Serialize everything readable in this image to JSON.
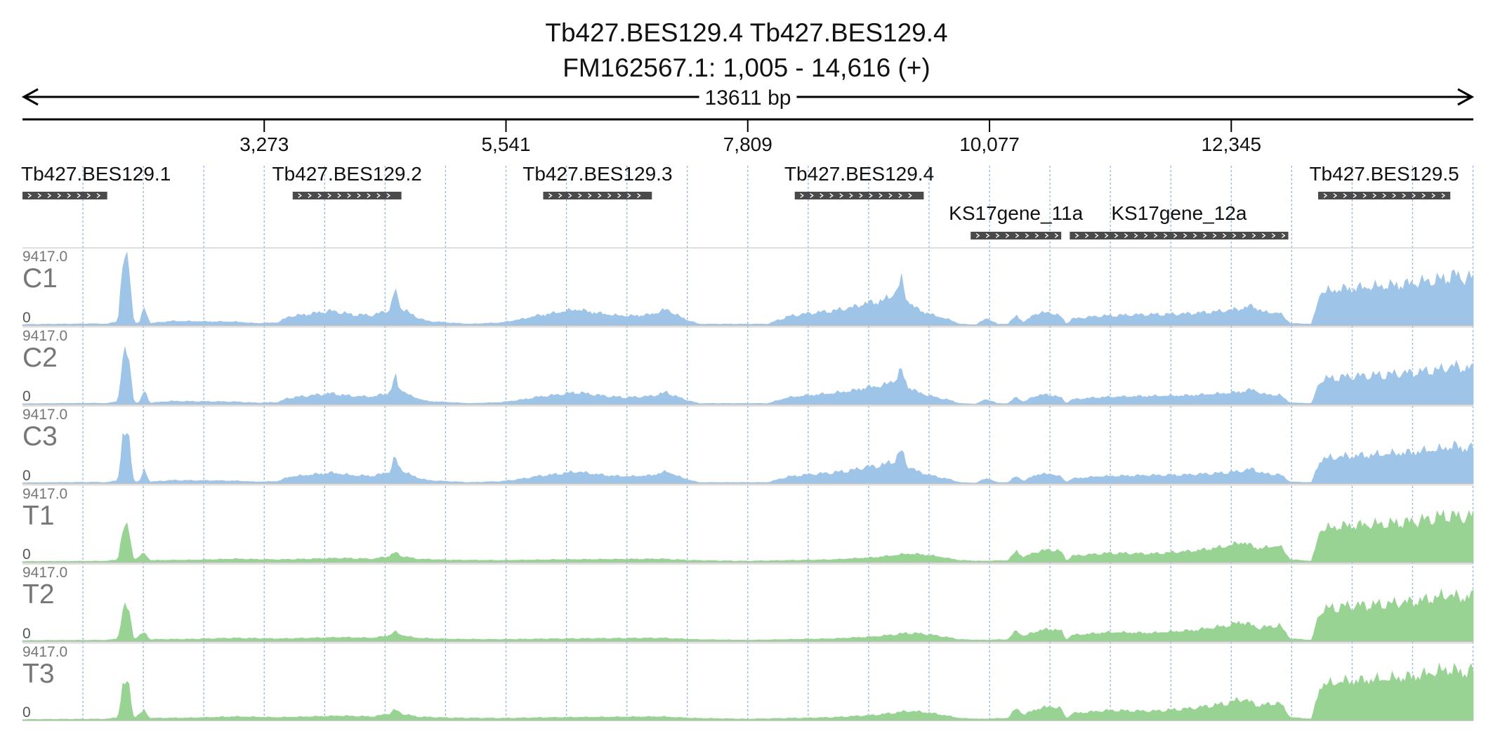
{
  "title": {
    "line1": "Tb427.BES129.4  Tb427.BES129.4",
    "line2": "FM162567.1: 1,005 - 14,616 (+)"
  },
  "chart_data": {
    "type": "area",
    "region": {
      "start": 1005,
      "end": 14616,
      "strand": "+",
      "length_label": "13611 bp"
    },
    "ticks": [
      {
        "pos": 3273,
        "label": "3,273"
      },
      {
        "pos": 5541,
        "label": "5,541"
      },
      {
        "pos": 7809,
        "label": "7,809"
      },
      {
        "pos": 10077,
        "label": "10,077"
      },
      {
        "pos": 12345,
        "label": "12,345"
      }
    ],
    "genes": [
      {
        "name": "Tb427.BES129.1",
        "start": 1005,
        "end": 1800,
        "row": 0
      },
      {
        "name": "Tb427.BES129.2",
        "start": 3540,
        "end": 4560,
        "row": 0
      },
      {
        "name": "Tb427.BES129.3",
        "start": 5890,
        "end": 6910,
        "row": 0
      },
      {
        "name": "Tb427.BES129.4",
        "start": 8250,
        "end": 9460,
        "row": 0
      },
      {
        "name": "KS17gene_11a",
        "start": 9900,
        "end": 10750,
        "row": 1
      },
      {
        "name": "KS17gene_12a",
        "start": 10830,
        "end": 12880,
        "row": 1
      },
      {
        "name": "Tb427.BES129.5",
        "start": 13160,
        "end": 14400,
        "row": 0
      }
    ],
    "track_max": "9417.0",
    "track_min": "0",
    "ymax": 9417,
    "colors": {
      "control": "#9ec4e8",
      "treated": "#98d394"
    },
    "tracks": [
      {
        "name": "C1",
        "group": "control",
        "scale": 1.0
      },
      {
        "name": "C2",
        "group": "control",
        "scale": 0.76
      },
      {
        "name": "C3",
        "group": "control",
        "scale": 0.74
      },
      {
        "name": "T1",
        "group": "treated",
        "scale": 1.0
      },
      {
        "name": "T2",
        "group": "treated",
        "scale": 0.97
      },
      {
        "name": "T3",
        "group": "treated",
        "scale": 1.07
      }
    ],
    "control_profile": [
      [
        1005,
        150
      ],
      [
        1700,
        250
      ],
      [
        1800,
        200
      ],
      [
        1900,
        600
      ],
      [
        1950,
        8900
      ],
      [
        2000,
        8900
      ],
      [
        2050,
        400
      ],
      [
        2100,
        300
      ],
      [
        2150,
        2600
      ],
      [
        2200,
        300
      ],
      [
        2400,
        600
      ],
      [
        3000,
        500
      ],
      [
        3200,
        300
      ],
      [
        3400,
        400
      ],
      [
        3500,
        1200
      ],
      [
        3700,
        1600
      ],
      [
        3900,
        2000
      ],
      [
        4100,
        1500
      ],
      [
        4300,
        1400
      ],
      [
        4450,
        2200
      ],
      [
        4480,
        3400
      ],
      [
        4500,
        5600
      ],
      [
        4520,
        3500
      ],
      [
        4560,
        2600
      ],
      [
        4650,
        1500
      ],
      [
        4800,
        600
      ],
      [
        5200,
        200
      ],
      [
        5500,
        400
      ],
      [
        5700,
        900
      ],
      [
        5850,
        1400
      ],
      [
        6000,
        1700
      ],
      [
        6200,
        2200
      ],
      [
        6400,
        1700
      ],
      [
        6550,
        1400
      ],
      [
        6700,
        1300
      ],
      [
        6900,
        1500
      ],
      [
        7050,
        2200
      ],
      [
        7200,
        1000
      ],
      [
        7350,
        200
      ],
      [
        7800,
        200
      ],
      [
        8000,
        200
      ],
      [
        8100,
        800
      ],
      [
        8200,
        1300
      ],
      [
        8400,
        1700
      ],
      [
        8600,
        2000
      ],
      [
        8800,
        2500
      ],
      [
        8900,
        3000
      ],
      [
        9000,
        3200
      ],
      [
        9100,
        3500
      ],
      [
        9200,
        4600
      ],
      [
        9250,
        6200
      ],
      [
        9300,
        3500
      ],
      [
        9400,
        2200
      ],
      [
        9550,
        1400
      ],
      [
        9700,
        800
      ],
      [
        9800,
        200
      ],
      [
        9950,
        100
      ],
      [
        10050,
        1000
      ],
      [
        10150,
        200
      ],
      [
        10250,
        200
      ],
      [
        10330,
        1400
      ],
      [
        10400,
        400
      ],
      [
        10500,
        1600
      ],
      [
        10650,
        1800
      ],
      [
        10750,
        1200
      ],
      [
        10800,
        200
      ],
      [
        10850,
        900
      ],
      [
        11100,
        1300
      ],
      [
        11500,
        1500
      ],
      [
        11900,
        1600
      ],
      [
        12200,
        1900
      ],
      [
        12400,
        2200
      ],
      [
        12550,
        2700
      ],
      [
        12650,
        1800
      ],
      [
        12800,
        1700
      ],
      [
        12900,
        300
      ],
      [
        13100,
        200
      ],
      [
        13180,
        4500
      ],
      [
        13400,
        5000
      ],
      [
        13700,
        5300
      ],
      [
        14000,
        5700
      ],
      [
        14300,
        6300
      ],
      [
        14450,
        7000
      ],
      [
        14500,
        6500
      ],
      [
        14616,
        6600
      ]
    ],
    "treated_profile": [
      [
        1005,
        150
      ],
      [
        1800,
        200
      ],
      [
        1900,
        400
      ],
      [
        1950,
        4700
      ],
      [
        2000,
        4700
      ],
      [
        2050,
        300
      ],
      [
        2150,
        1300
      ],
      [
        2200,
        300
      ],
      [
        2600,
        350
      ],
      [
        3000,
        500
      ],
      [
        3400,
        400
      ],
      [
        3700,
        500
      ],
      [
        4000,
        600
      ],
      [
        4300,
        500
      ],
      [
        4450,
        900
      ],
      [
        4500,
        1400
      ],
      [
        4560,
        900
      ],
      [
        4700,
        500
      ],
      [
        5000,
        350
      ],
      [
        5500,
        300
      ],
      [
        6000,
        400
      ],
      [
        6500,
        450
      ],
      [
        7000,
        500
      ],
      [
        7300,
        300
      ],
      [
        7800,
        200
      ],
      [
        8200,
        300
      ],
      [
        8600,
        400
      ],
      [
        9000,
        700
      ],
      [
        9200,
        1000
      ],
      [
        9300,
        1200
      ],
      [
        9450,
        1100
      ],
      [
        9600,
        800
      ],
      [
        9800,
        300
      ],
      [
        10000,
        200
      ],
      [
        10250,
        300
      ],
      [
        10330,
        1600
      ],
      [
        10400,
        700
      ],
      [
        10500,
        1400
      ],
      [
        10650,
        1800
      ],
      [
        10750,
        1500
      ],
      [
        10800,
        200
      ],
      [
        10850,
        900
      ],
      [
        11200,
        1300
      ],
      [
        11600,
        1200
      ],
      [
        12000,
        1600
      ],
      [
        12300,
        2200
      ],
      [
        12450,
        2800
      ],
      [
        12600,
        1900
      ],
      [
        12800,
        2300
      ],
      [
        12900,
        400
      ],
      [
        13100,
        200
      ],
      [
        13180,
        4500
      ],
      [
        13400,
        5000
      ],
      [
        13800,
        5300
      ],
      [
        14100,
        5700
      ],
      [
        14400,
        6600
      ],
      [
        14500,
        6100
      ],
      [
        14616,
        6500
      ]
    ]
  }
}
